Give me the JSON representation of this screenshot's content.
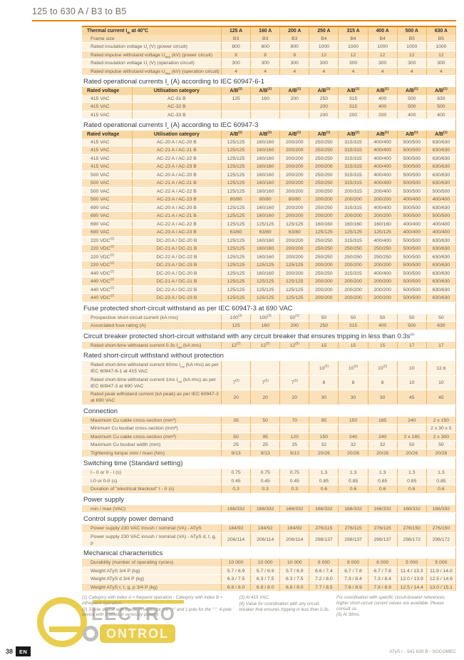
{
  "page": {
    "title": "125 to 630 A / B3 to B5",
    "page_number": "38",
    "lang_badge": "EN",
    "footer_right": "ATyS r - 541 630 B - SOCOMEC"
  },
  "colors": {
    "accent": "#ee7f00",
    "grid_line": "#f0b46a",
    "row_light": "#fdf2df",
    "row_dark": "#fae1ba",
    "header_row": "#f8d8a2",
    "title_text": "#7b6f63",
    "watermark_yellow": "#e8c93e",
    "watermark_gray": "#b9b9b3"
  },
  "watermark": {
    "e": "",
    "word1": "LECTRO",
    "word2": "ONTROL"
  },
  "table": {
    "columns": [
      "125 A",
      "160 A",
      "200 A",
      "250 A",
      "315 A",
      "400 A",
      "500 A",
      "630 A"
    ],
    "sections": [
      {
        "header": {
          "label": "Thermal current I~th~ at 40°C"
        },
        "rows": [
          {
            "l": "Frame size",
            "s": "b",
            "v": [
              "B3",
              "B3",
              "B3",
              "B4",
              "B4",
              "B4",
              "B5",
              "B5"
            ]
          },
          {
            "l": "Rated insulation voltage U~i~ (V) (power circuit)",
            "s": "a",
            "v": [
              "800",
              "800",
              "800",
              "1000",
              "1000",
              "1000",
              "1000",
              "1000"
            ]
          },
          {
            "l": "Rated impulse withstand voltage U~imp~ (kV) (power circuit)",
            "s": "b",
            "v": [
              "8",
              "8",
              "8",
              "12",
              "12",
              "12",
              "12",
              "12"
            ]
          },
          {
            "l": "Rated insulation voltage U~i~ (V) (operation circuit)",
            "s": "a",
            "v": [
              "300",
              "300",
              "300",
              "300",
              "300",
              "300",
              "300",
              "300"
            ]
          },
          {
            "l": "Rated impulse withstand voltage U~imp~ (kV) (operation circuit)",
            "s": "b",
            "v": [
              "4",
              "4",
              "4",
              "4",
              "4",
              "4",
              "4",
              "4"
            ]
          }
        ]
      },
      {
        "title": "Rated operational currents I~e~ (A) according to IEC 60947-6-1",
        "header": {
          "col1": "Rated voltage",
          "col2": "Utilisation category",
          "ab": "A/B^(1)^"
        },
        "rows": [
          {
            "l": "415 VAC",
            "l2": "AC-31 B",
            "s": "a",
            "v": [
              "125",
              "160",
              "200",
              "250",
              "315",
              "400",
              "500",
              "630"
            ]
          },
          {
            "l": "415 VAC",
            "l2": "AC-32 B",
            "s": "b",
            "v": [
              "",
              "",
              "",
              "200",
              "315",
              "400",
              "500",
              "500"
            ]
          },
          {
            "l": "415 VAC",
            "l2": "AC-33 B",
            "s": "a",
            "v": [
              "",
              "",
              "",
              "200",
              "200",
              "200",
              "400",
              "400"
            ]
          }
        ]
      },
      {
        "title": "Rated operational currents I~e~ (A) according to IEC 60947-3",
        "header": {
          "col1": "Rated voltage",
          "col2": "Utilisation category",
          "ab": "A/B^(1)^"
        },
        "rows": [
          {
            "l": "415 VAC",
            "l2": "AC-20 A / AC-20 B",
            "s": "a",
            "v": [
              "125/125",
              "160/160",
              "200/200",
              "250/250",
              "315/315",
              "400/400",
              "500/500",
              "630/630"
            ]
          },
          {
            "l": "415 VAC",
            "l2": "AC-21 A / AC-21 B",
            "s": "b",
            "v": [
              "125/125",
              "160/160",
              "200/200",
              "250/250",
              "315/315",
              "400/400",
              "500/500",
              "630/630"
            ]
          },
          {
            "l": "415 VAC",
            "l2": "AC-22 A / AC-22 B",
            "s": "a",
            "v": [
              "125/125",
              "160/160",
              "200/200",
              "250/250",
              "315/315",
              "400/400",
              "500/500",
              "630/630"
            ]
          },
          {
            "l": "415 VAC",
            "l2": "AC-23 A / AC-23 B",
            "s": "b",
            "v": [
              "125/125",
              "160/160",
              "200/200",
              "200/200",
              "315/315",
              "400/400",
              "500/500",
              "630/630"
            ]
          },
          {
            "l": "500 VAC",
            "l2": "AC-20 A / AC-20 B",
            "s": "a",
            "v": [
              "125/125",
              "160/160",
              "200/200",
              "250/250",
              "315/315",
              "400/400",
              "500/500",
              "630/630"
            ]
          },
          {
            "l": "500 VAC",
            "l2": "AC-21 A / AC-21 B",
            "s": "b",
            "v": [
              "125/125",
              "160/160",
              "200/200",
              "250/250",
              "315/315",
              "400/400",
              "500/500",
              "630/630"
            ]
          },
          {
            "l": "500 VAC",
            "l2": "AC-22 A / AC-22 B",
            "s": "a",
            "v": [
              "125/125",
              "160/160",
              "200/200",
              "200/250",
              "200/315",
              "200/400",
              "500/500",
              "500/500"
            ]
          },
          {
            "l": "500 VAC",
            "l2": "AC-23 A / AC-23 B",
            "s": "b",
            "v": [
              "80/80",
              "80/80",
              "80/80",
              "200/200",
              "200/200",
              "200/200",
              "400/400",
              "400/400"
            ]
          },
          {
            "l": "690 VAC",
            "l2": "AC-20 A / AC-20 B",
            "s": "a",
            "v": [
              "125/125",
              "160/160",
              "200/200",
              "250/250",
              "315/315",
              "400/400",
              "500/500",
              "630/630"
            ]
          },
          {
            "l": "690 VAC",
            "l2": "AC-21 A / AC-21 B",
            "s": "b",
            "v": [
              "125/125",
              "160/160",
              "200/200",
              "200/200",
              "200/200",
              "200/200",
              "500/500",
              "500/500"
            ]
          },
          {
            "l": "690 VAC",
            "l2": "AC-22 A / AC-22 B",
            "s": "a",
            "v": [
              "125/125",
              "125/125",
              "125/125",
              "160/160",
              "160/160",
              "160/160",
              "400/400",
              "400/400"
            ]
          },
          {
            "l": "690 VAC",
            "l2": "AC-23 A / AC-23 B",
            "s": "b",
            "v": [
              "63/80",
              "63/80",
              "63/80",
              "125/125",
              "125/125",
              "125/125",
              "400/400",
              "400/400"
            ]
          },
          {
            "l": "220 VDC^(2)^",
            "l2": "DC-20 A / DC-20 B",
            "s": "a",
            "v": [
              "125/125",
              "160/160",
              "200/200",
              "250/250",
              "315/315",
              "400/400",
              "500/500",
              "630/630"
            ]
          },
          {
            "l": "220 VDC^(2)^",
            "l2": "DC-21 A / DC-21 B",
            "s": "b",
            "v": [
              "125/125",
              "160/160",
              "200/200",
              "250/250",
              "250/250",
              "250/250",
              "500/500",
              "630/630"
            ]
          },
          {
            "l": "220 VDC^(2)^",
            "l2": "DC-22 A / DC-22 B",
            "s": "a",
            "v": [
              "125/125",
              "160/160",
              "200/200",
              "250/250",
              "250/250",
              "250/250",
              "500/500",
              "630/630"
            ]
          },
          {
            "l": "220 VDC^(2)^",
            "l2": "DC-23 A / DC-23 B",
            "s": "b",
            "v": [
              "125/125",
              "125/125",
              "125/125",
              "200/200",
              "200/200",
              "200/200",
              "500/500",
              "630/630"
            ]
          },
          {
            "l": "440 VDC^(2)^",
            "l2": "DC-20 A / DC-20 B",
            "s": "a",
            "v": [
              "125/125",
              "160/160",
              "200/200",
              "250/250",
              "315/315",
              "400/400",
              "500/500",
              "630/630"
            ]
          },
          {
            "l": "440 VDC^(2)^",
            "l2": "DC-21 A / DC-21 B",
            "s": "b",
            "v": [
              "125/125",
              "125/125",
              "125/125",
              "200/200",
              "200/200",
              "200/200",
              "500/500",
              "630/630"
            ]
          },
          {
            "l": "440 VDC^(2)^",
            "l2": "DC-22 A / DC-22 B",
            "s": "a",
            "v": [
              "125/125",
              "125/125",
              "125/125",
              "200/200",
              "200/200",
              "200/200",
              "500/500",
              "630/630"
            ]
          },
          {
            "l": "440 VDC^(2)^",
            "l2": "DC-23 A / DC-23 B",
            "s": "b",
            "v": [
              "125/125",
              "125/125",
              "125/125",
              "200/200",
              "200/200",
              "200/200",
              "500/500",
              "630/630"
            ]
          }
        ]
      },
      {
        "title": "Fuse protected short-circuit withstand as per IEC 60947-3 at 690 VAC",
        "rows": [
          {
            "l": "Prospective short-circuit current (kA rms)",
            "s": "a",
            "v": [
              "100^(3)^",
              "100^(3)^",
              "50^(3)^",
              "50",
              "50",
              "50",
              "50",
              "50"
            ]
          },
          {
            "l": "Associated fuse rating (A)",
            "s": "b",
            "v": [
              "125",
              "160",
              "200",
              "250",
              "315",
              "400",
              "500",
              "630"
            ]
          }
        ]
      },
      {
        "title": "Circuit breaker protected short-circuit withstand with any circuit breaker that ensures tripping in less than 0.3s^(4)^",
        "rows": [
          {
            "l": "Rated short-time withstand current 0.3s I~cw~ (kA rms)",
            "s": "b",
            "v": [
              "12^(5)^",
              "12^(5)^",
              "12^(5)^",
              "15",
              "15",
              "15",
              "17",
              "17"
            ]
          }
        ]
      },
      {
        "title": "Rated short-circuit withstand without protection",
        "rows": [
          {
            "l": "Rated short-time withstand current 60ms I~cw~ (kA rms) as per IEC 60947-6-1 at 415 VAC",
            "s": "a",
            "v": [
              "",
              "",
              "",
              "10^(5)^",
              "10^(5)^",
              "10^(5)^",
              "10",
              "12.6"
            ]
          },
          {
            "l": "Rated short-time withstand current 1ms I~cw~ (kA rms) as per IEC 60947-3 at 690 VAC",
            "s": "a",
            "v": [
              "7^(5)^",
              "7^(5)^",
              "7^(5)^",
              "8",
              "8",
              "8",
              "10",
              "10"
            ]
          },
          {
            "l": "Rated peak withstand current (kA peak) as per IEC 60947-3 at 690 VAC",
            "s": "b",
            "v": [
              "20",
              "20",
              "20",
              "30",
              "30",
              "30",
              "45",
              "45"
            ]
          }
        ]
      },
      {
        "title": "Connection",
        "rows": [
          {
            "l": "Maximum Cu cable cross-section (mm²)",
            "s": "b",
            "v": [
              "35",
              "50",
              "70",
              "95",
              "150",
              "185",
              "240",
              "2 x 150"
            ]
          },
          {
            "l": "Minimum Cu busbar cross-section (mm²)",
            "s": "a",
            "v": [
              "",
              "",
              "",
              "",
              "",
              "",
              "",
              "2 x 30 x 5"
            ]
          },
          {
            "l": "Maximum Cu cable cross-section (mm²)",
            "s": "b",
            "v": [
              "50",
              "95",
              "120",
              "150",
              "240",
              "240",
              "2 x 185",
              "2 x 300"
            ]
          },
          {
            "l": "Maximum Cu busbar width (mm)",
            "s": "a",
            "v": [
              "25",
              "25",
              "25",
              "32",
              "32",
              "32",
              "50",
              "50"
            ]
          },
          {
            "l": "Tightening torque mini / maxi (Nm)",
            "s": "b",
            "v": [
              "9/13",
              "9/13",
              "9/13",
              "20/26",
              "20/26",
              "20/26",
              "20/26",
              "20/26"
            ]
          }
        ]
      },
      {
        "title": "Switching time (Standard setting)",
        "rows": [
          {
            "l": "I - II or II - I (s)",
            "s": "a",
            "v": [
              "0.75",
              "0.75",
              "0.75",
              "1.3",
              "1.3",
              "1.3",
              "1.3",
              "1.3"
            ]
          },
          {
            "l": "I-0 or 0-II (s)",
            "s": "a",
            "v": [
              "0.45",
              "0.45",
              "0.45",
              "0.85",
              "0.85",
              "0.85",
              "0.85",
              "0.85"
            ]
          },
          {
            "l": "Duration of \"electrical blackout\" I - II (s)",
            "s": "b",
            "v": [
              "0.3",
              "0.3",
              "0.3",
              "0.6",
              "0.6",
              "0.6",
              "0.6",
              "0.6"
            ]
          }
        ]
      },
      {
        "title": "Power supply",
        "rows": [
          {
            "l": "min / max (VAC)",
            "s": "b",
            "v": [
              "166/332",
              "166/332",
              "166/332",
              "166/332",
              "166/332",
              "166/332",
              "166/332",
              "166/332"
            ]
          }
        ]
      },
      {
        "title": "Control supply power demand",
        "rows": [
          {
            "l": "Power supply 230 VAC inrush / nominal (VA) - ATyS",
            "s": "b",
            "v": [
              "184/92",
              "184/92",
              "184/92",
              "276/115",
              "276/115",
              "276/115",
              "276/150",
              "276/150"
            ]
          },
          {
            "l": "Power supply 230 VAC inrush / nominal (VA) - ATyS d, t, g, p",
            "s": "a",
            "v": [
              "206/114",
              "206/114",
              "206/114",
              "298/137",
              "298/137",
              "298/137",
              "298/172",
              "298/172"
            ]
          }
        ]
      },
      {
        "title": "Mechanical characteristics",
        "rows": [
          {
            "l": "Durability (number of operating cycles)",
            "s": "b",
            "v": [
              "10 000",
              "10 000",
              "10 000",
              "8 000",
              "8 000",
              "8 000",
              "5 000",
              "5 000"
            ]
          },
          {
            "l": "Weight ATyS 3/4 P (kg)",
            "s": "a",
            "v": [
              "5.7 / 6.9",
              "5.7 / 6.9",
              "5.7 / 6.9",
              "6.6 / 7.4",
              "6.7 / 7.8",
              "6.7 / 7.8",
              "11.4 / 13.3",
              "11.9 / 14.0"
            ]
          },
          {
            "l": "Weight ATyS d 3/4 P (kg)",
            "s": "a",
            "v": [
              "6.3 / 7.5",
              "6.3 / 7.5",
              "6.3 / 7.5",
              "7.2 / 8.0",
              "7.3 / 8.4",
              "7.3 / 8.4",
              "12.0 / 13.9",
              "12.5 / 14.6"
            ]
          },
          {
            "l": "Weight ATyS r, t, g, p 3/4 P (kg)",
            "s": "b",
            "v": [
              "6.8 / 8.0",
              "6.8 / 8.0",
              "6.8 / 8.0",
              "7.7 / 8.5",
              "7.8 / 8.9",
              "7.8 / 8.9",
              "12.5 / 14.4",
              "13.0 / 15.1"
            ]
          }
        ]
      }
    ]
  },
  "footnotes": {
    "col1": [
      "(1) Category with index A = frequent operation - Category with index B = infrequent operation.",
      "(2) 3-pole device with 2 pole in series for the \"+\" and 1 pole for the \"-\". 4-pole device with 2 poles in series by polarity."
    ],
    "col2": [
      "(3) At 415 VAC.",
      "(4) Value for coordination with any circuit-breaker that ensures tripping in less than 0.3s."
    ],
    "col3": [
      "For coordination with specific circuit-breaker references, higher short-circuit current values are available. Please consult us.",
      "(5) At 30ms."
    ]
  }
}
